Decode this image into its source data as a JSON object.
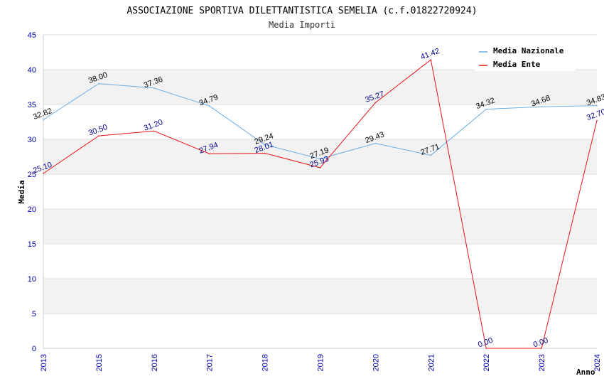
{
  "chart_data": {
    "type": "line",
    "title": "ASSOCIAZIONE SPORTIVA DILETTANTISTICA SEMELIA (c.f.01822720924)",
    "subtitle": "Media Importi",
    "xlabel": "Anno",
    "ylabel": "Media",
    "ylim": [
      0,
      45
    ],
    "yticks": [
      0,
      5,
      10,
      15,
      20,
      25,
      30,
      35,
      40,
      45
    ],
    "categories": [
      "2013",
      "2015",
      "2016",
      "2017",
      "2018",
      "2019",
      "2020",
      "2021",
      "2022",
      "2023",
      "2024"
    ],
    "series": [
      {
        "name": "Media Nazionale",
        "color": "#6aaee6",
        "label_color": "#000000",
        "values": [
          32.82,
          38.0,
          37.36,
          34.79,
          29.24,
          27.19,
          29.43,
          27.71,
          34.32,
          34.68,
          34.83
        ],
        "labels": [
          "32.82",
          "38.00",
          "37.36",
          "34.79",
          "29.24",
          "27.19",
          "29.43",
          "27.71",
          "34.32",
          "34.68",
          "34.83"
        ]
      },
      {
        "name": "Media Ente",
        "color": "#e8141b",
        "label_color": "#00008b",
        "values": [
          25.1,
          30.5,
          31.2,
          27.94,
          28.01,
          25.93,
          35.27,
          41.42,
          0.0,
          0.0,
          32.7
        ],
        "labels": [
          "25.10",
          "30.50",
          "31.20",
          "27.94",
          "28.01",
          "25.93",
          "35.27",
          "41.42",
          "0.00",
          "0.00",
          "32.70"
        ]
      }
    ],
    "legend_position": "top-right",
    "grid": true
  }
}
